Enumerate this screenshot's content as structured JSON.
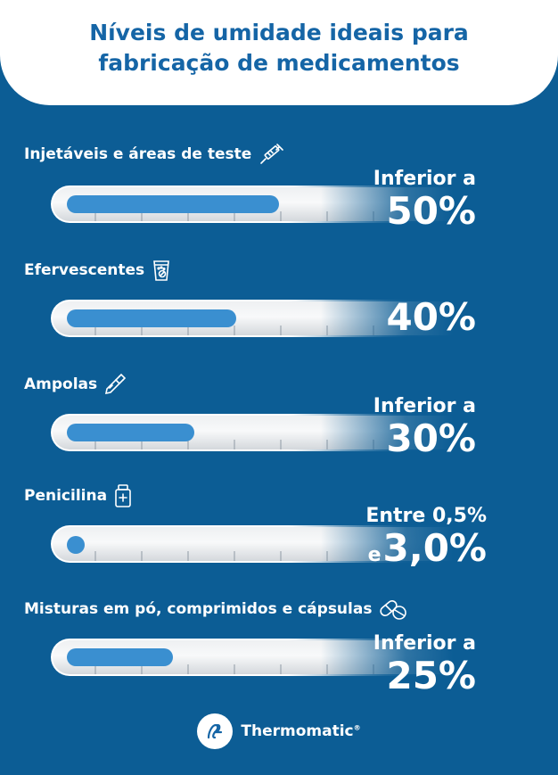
{
  "header": {
    "title_line1": "Níveis de umidade ideais para",
    "title_line2": "fabricação de medicamentos"
  },
  "items": [
    {
      "label": "Injetáveis e áreas de teste",
      "icon": "syringe-icon",
      "value_prefix": "Inferior a",
      "value": "50%",
      "level_percent": 50
    },
    {
      "label": "Efervescentes",
      "icon": "effervescent-glass-icon",
      "value_prefix": "",
      "value": "40%",
      "level_percent": 40
    },
    {
      "label": "Ampolas",
      "icon": "ampoule-icon",
      "value_prefix": "Inferior a",
      "value": "30%",
      "level_percent": 30
    },
    {
      "label": "Penicilina",
      "icon": "medicine-bottle-icon",
      "value_prefix": "Entre 0,5%",
      "value_connector": "e",
      "value": "3,0%",
      "level_percent": 3
    },
    {
      "label": "Misturas em pó, comprimidos e cápsulas",
      "icon": "capsule-pills-icon",
      "value_prefix": "Inferior a",
      "value": "25%",
      "level_percent": 25
    }
  ],
  "footer": {
    "brand": "Thermomatic",
    "registered_mark": "®",
    "icon": "thermomatic-logo-icon"
  },
  "colors": {
    "background": "#0c5d95",
    "accent": "#3a8fd0",
    "title": "#1565a6"
  }
}
